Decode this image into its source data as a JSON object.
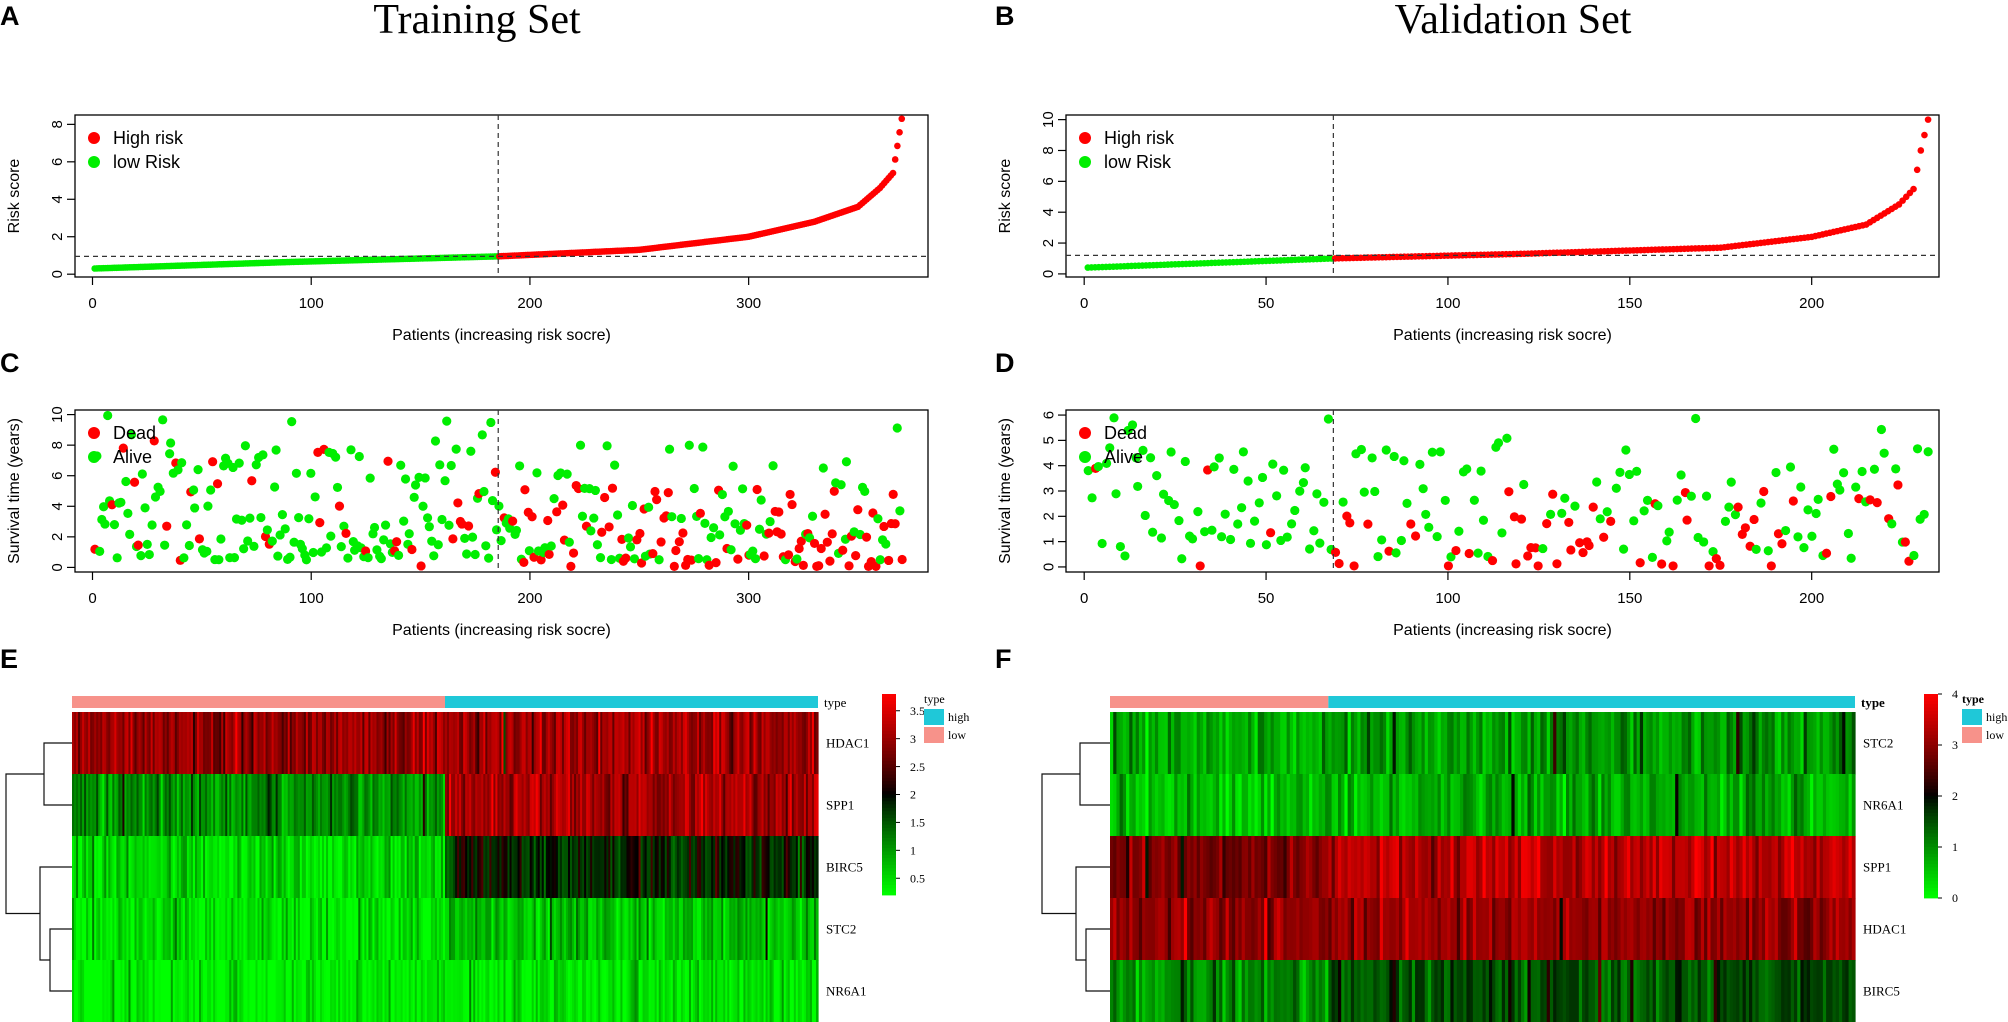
{
  "figure": {
    "titles": {
      "training": "Training Set",
      "validation": "Validation Set"
    },
    "panel_letters": [
      "A",
      "B",
      "C",
      "D",
      "E",
      "F"
    ]
  },
  "colors": {
    "high": "#ff0000",
    "low": "#00ee00",
    "dead": "#ff0000",
    "alive": "#00ee00",
    "type_high": "#1fc8d8",
    "type_low": "#f7928a"
  },
  "chart_data": [
    {
      "panel": "A",
      "type": "scatter",
      "title": "Training Set",
      "xlabel": "Patients (increasing risk socre)",
      "ylabel": "Risk score",
      "xlim": [
        -8,
        382
      ],
      "ylim": [
        -0.15,
        8.5
      ],
      "xticks": [
        "0",
        "100",
        "200",
        "300"
      ],
      "yticks": [
        "0",
        "2",
        "4",
        "6",
        "8"
      ],
      "legend": [
        "High risk",
        "low Risk"
      ],
      "n_patients": 370,
      "cutoff_index": 185,
      "cutoff_value": 0.95,
      "risk_curve": {
        "x": [
          0,
          90,
          185,
          250,
          300,
          330,
          350,
          360,
          366,
          370
        ],
        "y": [
          0.3,
          0.65,
          0.95,
          1.3,
          2.0,
          2.8,
          3.6,
          4.6,
          5.4,
          8.3
        ]
      },
      "series": [
        {
          "name": "High risk",
          "range": [
            186,
            370
          ]
        },
        {
          "name": "low Risk",
          "range": [
            1,
            185
          ]
        }
      ]
    },
    {
      "panel": "B",
      "type": "scatter",
      "xlabel": "Patients (increasing risk socre)",
      "ylabel": "Risk score",
      "xlim": [
        -5,
        235
      ],
      "ylim": [
        -0.2,
        10.3
      ],
      "xticks": [
        "0",
        "50",
        "100",
        "150",
        "200"
      ],
      "yticks": [
        "0",
        "2",
        "4",
        "6",
        "8",
        "10"
      ],
      "legend": [
        "High risk",
        "low Risk"
      ],
      "n_patients": 232,
      "cutoff_index": 68,
      "cutoff_value": 1.2,
      "risk_curve": {
        "x": [
          0,
          68,
          120,
          175,
          200,
          215,
          224,
          228,
          230,
          232
        ],
        "y": [
          0.4,
          1.0,
          1.3,
          1.7,
          2.4,
          3.2,
          4.5,
          5.5,
          8.0,
          10.0
        ]
      },
      "series": [
        {
          "name": "High risk",
          "range": [
            69,
            232
          ]
        },
        {
          "name": "low Risk",
          "range": [
            1,
            68
          ]
        }
      ]
    },
    {
      "panel": "C",
      "type": "scatter",
      "xlabel": "Patients (increasing risk socre)",
      "ylabel": "Survival time (years)",
      "xlim": [
        -8,
        382
      ],
      "ylim": [
        -0.3,
        10.3
      ],
      "xticks": [
        "0",
        "100",
        "200",
        "300"
      ],
      "yticks": [
        "0",
        "2",
        "4",
        "6",
        "8",
        "10"
      ],
      "legend": [
        "Dead",
        "Alive"
      ],
      "n_patients": 370,
      "cutoff_index": 185,
      "max_time": 10,
      "dead_rate_low": 0.24,
      "dead_rate_high": 0.5
    },
    {
      "panel": "D",
      "type": "scatter",
      "xlabel": "Patients (increasing risk socre)",
      "ylabel": "Survival time (years)",
      "xlim": [
        -5,
        235
      ],
      "ylim": [
        -0.2,
        6.2
      ],
      "xticks": [
        "0",
        "50",
        "100",
        "150",
        "200"
      ],
      "yticks": [
        "0",
        "1",
        "2",
        "3",
        "4",
        "5",
        "6"
      ],
      "legend": [
        "Dead",
        "Alive"
      ],
      "n_patients": 232,
      "cutoff_index": 68,
      "max_time": 6,
      "dead_rate_low": 0.05,
      "dead_rate_high": 0.32
    },
    {
      "panel": "E",
      "type": "heatmap",
      "genes": [
        "HDAC1",
        "SPP1",
        "BIRC5",
        "STC2",
        "NR6A1"
      ],
      "gene_means_low": [
        3.0,
        1.1,
        0.5,
        0.45,
        0.3
      ],
      "gene_means_high": [
        3.05,
        3.1,
        1.8,
        0.7,
        0.4
      ],
      "n_low": 185,
      "n_high": 185,
      "type_label": "type",
      "type_legend": [
        "high",
        "low"
      ],
      "colorbar_range": [
        0.2,
        3.8
      ],
      "colorbar_ticks": [
        "3.5",
        "3",
        "2.5",
        "2",
        "1.5",
        "1",
        "0.5"
      ],
      "colorbar_tick_values": [
        3.5,
        3,
        2.5,
        2,
        1.5,
        1,
        0.5
      ]
    },
    {
      "panel": "F",
      "type": "heatmap",
      "genes": [
        "STC2",
        "NR6A1",
        "SPP1",
        "HDAC1",
        "BIRC5"
      ],
      "gene_means_low": [
        0.8,
        0.6,
        2.8,
        3.0,
        1.0
      ],
      "gene_means_high": [
        0.9,
        0.8,
        3.4,
        3.05,
        1.5
      ],
      "n_low": 68,
      "n_high": 164,
      "type_label": "type",
      "type_legend": [
        "high",
        "low"
      ],
      "colorbar_range": [
        0,
        4
      ],
      "colorbar_ticks": [
        "4",
        "3",
        "2",
        "1",
        "0"
      ],
      "colorbar_tick_values": [
        4,
        3,
        2,
        1,
        0
      ]
    }
  ]
}
